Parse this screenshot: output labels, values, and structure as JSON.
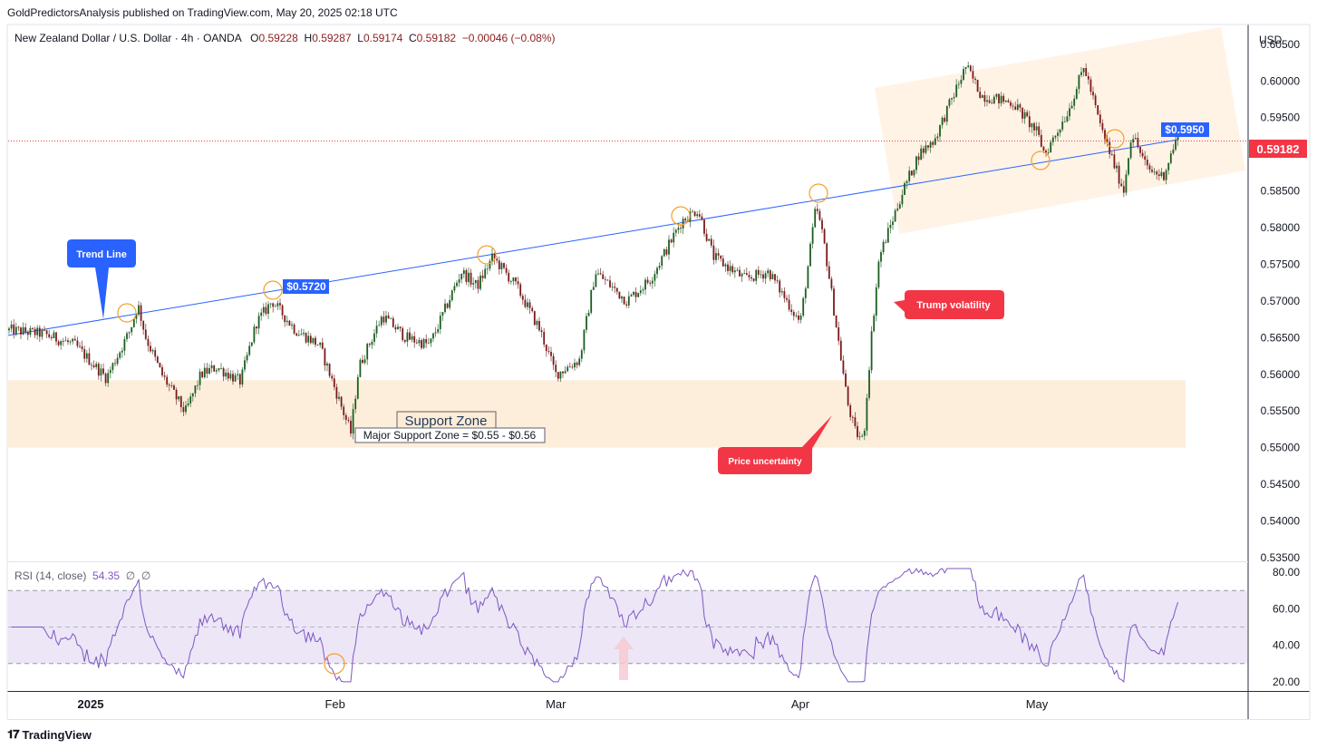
{
  "header": {
    "publisher": "GoldPredictorsAnalysis published on TradingView.com, May 20, 2025 02:18 UTC"
  },
  "legend": {
    "symbol": "New Zealand Dollar / U.S. Dollar · 4h · OANDA",
    "open_label": "O",
    "open": "0.59228",
    "high_label": "H",
    "high": "0.59287",
    "low_label": "L",
    "low": "0.59174",
    "close_label": "C",
    "close": "0.59182",
    "change": "−0.00046 (−0.08%)"
  },
  "currency": "USD",
  "rsi_legend": {
    "name": "RSI (14, close)",
    "value": "54.35",
    "extra1": "∅",
    "extra2": "∅"
  },
  "footer": {
    "brand": "TradingView"
  },
  "chart_data": [
    {
      "type": "candlestick",
      "title": "New Zealand Dollar / U.S. Dollar · 4h · OANDA",
      "ylim": [
        0.535,
        0.6035
      ],
      "y_ticks": [
        "0.53500",
        "0.54000",
        "0.54500",
        "0.55000",
        "0.55500",
        "0.56000",
        "0.56500",
        "0.57000",
        "0.57500",
        "0.58000",
        "0.58500",
        "0.59000",
        "0.59500",
        "0.60000",
        "0.60500"
      ],
      "x_ticks": [
        "2025",
        "Feb",
        "Mar",
        "Apr",
        "May"
      ],
      "last_price": "0.59182",
      "path": [
        [
          "2024-12-22",
          0.566
        ],
        [
          "2024-12-26",
          0.5655
        ],
        [
          "2024-12-30",
          0.564
        ],
        [
          "2025-01-03",
          0.5595
        ],
        [
          "2025-01-06",
          0.566
        ],
        [
          "2025-01-07",
          0.5695
        ],
        [
          "2025-01-08",
          0.565
        ],
        [
          "2025-01-10",
          0.56
        ],
        [
          "2025-01-13",
          0.5548
        ],
        [
          "2025-01-15",
          0.56
        ],
        [
          "2025-01-17",
          0.561
        ],
        [
          "2025-01-20",
          0.559
        ],
        [
          "2025-01-22",
          0.567
        ],
        [
          "2025-01-24",
          0.57
        ],
        [
          "2025-01-27",
          0.566
        ],
        [
          "2025-01-30",
          0.564
        ],
        [
          "2025-02-03",
          0.552
        ],
        [
          "2025-02-04",
          0.561
        ],
        [
          "2025-02-07",
          0.568
        ],
        [
          "2025-02-10",
          0.565
        ],
        [
          "2025-02-13",
          0.564
        ],
        [
          "2025-02-17",
          0.574
        ],
        [
          "2025-02-19",
          0.572
        ],
        [
          "2025-02-21",
          0.576
        ],
        [
          "2025-02-24",
          0.572
        ],
        [
          "2025-02-27",
          0.566
        ],
        [
          "2025-03-01",
          0.56
        ],
        [
          "2025-03-04",
          0.562
        ],
        [
          "2025-03-06",
          0.574
        ],
        [
          "2025-03-10",
          0.57
        ],
        [
          "2025-03-13",
          0.573
        ],
        [
          "2025-03-17",
          0.581
        ],
        [
          "2025-03-19",
          0.5825
        ],
        [
          "2025-03-21",
          0.576
        ],
        [
          "2025-03-25",
          0.573
        ],
        [
          "2025-03-28",
          0.574
        ],
        [
          "2025-04-01",
          0.567
        ],
        [
          "2025-04-03",
          0.583
        ],
        [
          "2025-04-04",
          0.578
        ],
        [
          "2025-04-07",
          0.556
        ],
        [
          "2025-04-08",
          0.552
        ],
        [
          "2025-04-09",
          0.551
        ],
        [
          "2025-04-10",
          0.565
        ],
        [
          "2025-04-11",
          0.576
        ],
        [
          "2025-04-14",
          0.585
        ],
        [
          "2025-04-16",
          0.59
        ],
        [
          "2025-04-18",
          0.592
        ],
        [
          "2025-04-22",
          0.602
        ],
        [
          "2025-04-24",
          0.598
        ],
        [
          "2025-04-28",
          0.597
        ],
        [
          "2025-05-01",
          0.593
        ],
        [
          "2025-05-02",
          0.59
        ],
        [
          "2025-05-05",
          0.596
        ],
        [
          "2025-05-07",
          0.602
        ],
        [
          "2025-05-09",
          0.594
        ],
        [
          "2025-05-12",
          0.585
        ],
        [
          "2025-05-13",
          0.593
        ],
        [
          "2025-05-15",
          0.588
        ],
        [
          "2025-05-17",
          0.587
        ],
        [
          "2025-05-19",
          0.593
        ],
        [
          "2025-05-20",
          0.5918
        ]
      ],
      "annotations": {
        "trend_line_label": "Trend Line",
        "price_label_1": "$0.5720",
        "price_label_2": "$0.5950",
        "trump_label": "Trump volatility",
        "uncertainty_label": "Price uncertainty",
        "support_title": "Support Zone",
        "support_subtitle": "Major Support Zone = $0.55 - $0.56",
        "support_zone": [
          0.55,
          0.5592
        ]
      },
      "colors": {
        "up": "#26a69a",
        "down": "#ef5350",
        "body_up": "#1b5e20",
        "body_down": "#7b1a1a",
        "trend": "#2962ff",
        "zone": "#fdebd3",
        "circle": "#f59f2b",
        "last_price": "#f23645"
      }
    },
    {
      "type": "line",
      "title": "RSI (14, close)",
      "ylim": [
        15,
        85
      ],
      "y_ticks": [
        "20.00",
        "40.00",
        "60.00",
        "80.00"
      ],
      "bands": [
        30,
        50,
        70
      ],
      "last_value": 54.35,
      "colors": {
        "line": "#7e57c2",
        "band_fill": "#ece6f7"
      }
    }
  ]
}
